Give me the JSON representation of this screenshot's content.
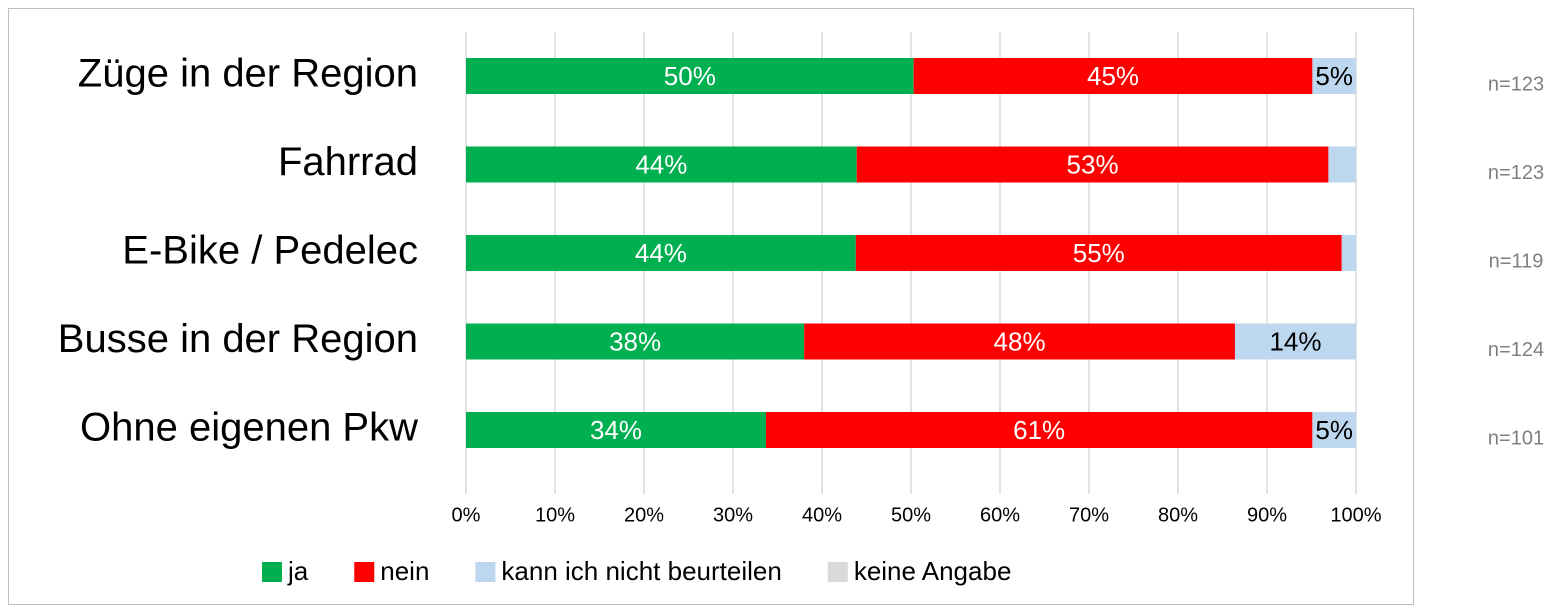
{
  "chart_data": {
    "type": "stacked_bar_horizontal",
    "categories": [
      "Züge in der Region",
      "Fahrrad",
      "E-Bike / Pedelec",
      "Busse in der Region",
      "Ohne eigenen Pkw"
    ],
    "series": [
      {
        "name": "ja",
        "color": "#00b050",
        "label_color": "#ffffff",
        "values": [
          50.3,
          43.9,
          43.8,
          38.0,
          33.7
        ],
        "value_labels": [
          "50%",
          "44%",
          "44%",
          "38%",
          "34%"
        ]
      },
      {
        "name": "nein",
        "color": "#ff0000",
        "label_color": "#ffffff",
        "values": [
          44.8,
          53.0,
          54.6,
          48.4,
          61.4
        ],
        "value_labels": [
          "45%",
          "53%",
          "55%",
          "48%",
          "61%"
        ]
      },
      {
        "name": "kann ich nicht beurteilen",
        "color": "#bdd7ee",
        "label_color": "#000000",
        "values": [
          4.9,
          3.1,
          1.6,
          13.6,
          4.9
        ],
        "value_labels": [
          "5%",
          null,
          null,
          "14%",
          "5%"
        ]
      },
      {
        "name": "keine Angabe",
        "color": "#d9d9d9",
        "label_color": "#000000",
        "values": [
          0,
          0,
          0,
          0,
          0
        ],
        "value_labels": [
          null,
          null,
          null,
          null,
          null
        ]
      }
    ],
    "annotations": [
      "n=123",
      "n=123",
      "n=119",
      "n=124",
      "n=101"
    ],
    "xlim": [
      0,
      100
    ],
    "xticks": [
      {
        "value": 0,
        "label": "0%"
      },
      {
        "value": 10,
        "label": "10%"
      },
      {
        "value": 20,
        "label": "20%"
      },
      {
        "value": 30,
        "label": "30%"
      },
      {
        "value": 40,
        "label": "40%"
      },
      {
        "value": 50,
        "label": "50%"
      },
      {
        "value": 60,
        "label": "60%"
      },
      {
        "value": 70,
        "label": "70%"
      },
      {
        "value": 80,
        "label": "80%"
      },
      {
        "value": 90,
        "label": "90%"
      },
      {
        "value": 100,
        "label": "100%"
      }
    ],
    "grid": true,
    "legend": "bottom"
  }
}
